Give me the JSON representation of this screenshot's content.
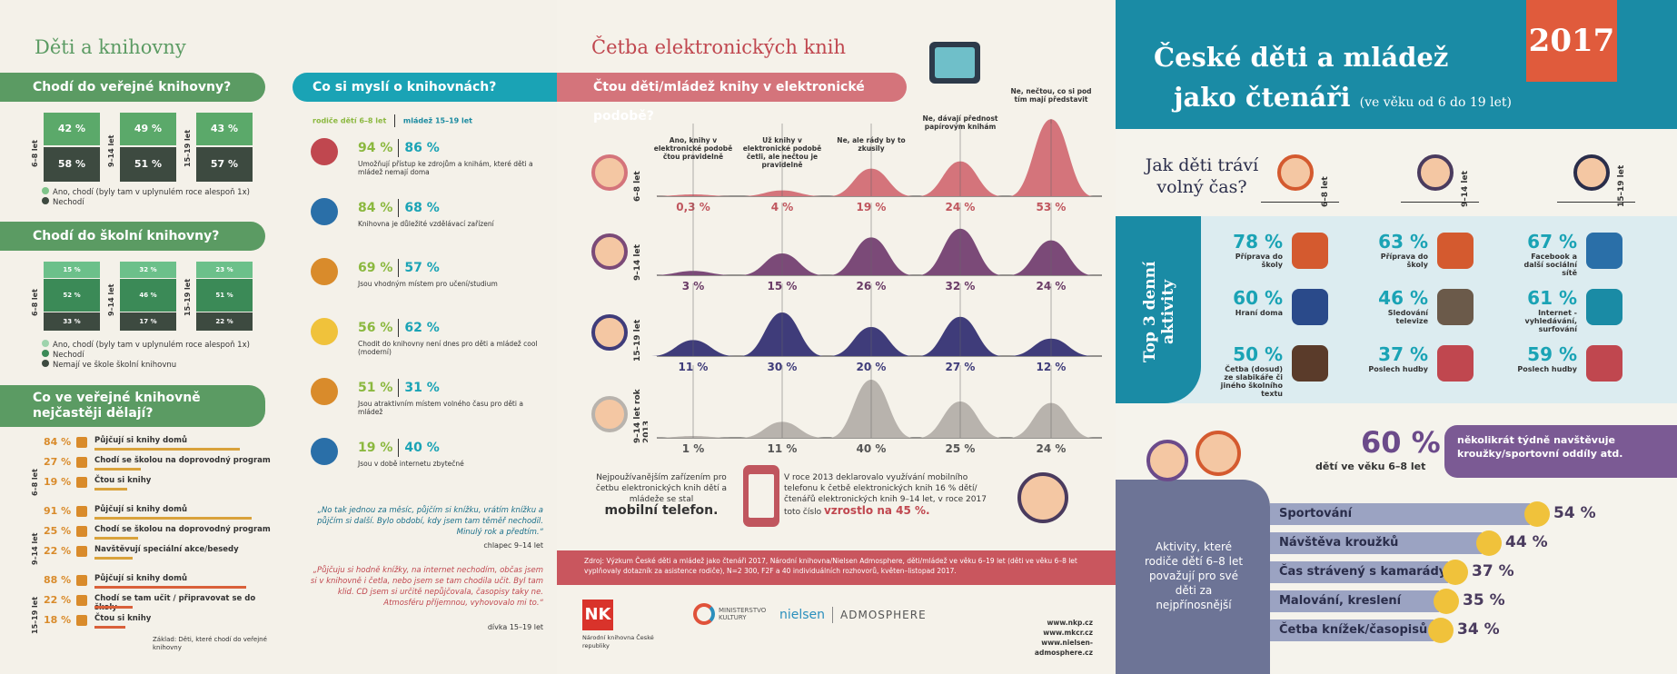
{
  "p1": {
    "title": "Děti a knihovny",
    "q1": "Chodí do veřejné knihovny?",
    "q1_groups": [
      {
        "age": "6–8 let",
        "top": "42 %",
        "bottom": "58 %"
      },
      {
        "age": "9–14 let",
        "top": "49 %",
        "bottom": "51 %"
      },
      {
        "age": "15–19 let",
        "top": "43 %",
        "bottom": "57 %"
      }
    ],
    "q1_legend": [
      "Ano, chodí (byly tam v uplynulém roce alespoň 1x)",
      "Nechodí"
    ],
    "q2": "Chodí do školní knihovny?",
    "q2_groups": [
      {
        "age": "6–8 let",
        "a": "15 %",
        "b": "52 %",
        "c": "33 %"
      },
      {
        "age": "9–14 let",
        "a": "32 %",
        "b": "46 %",
        "c": "17 %"
      },
      {
        "age": "15–19 let",
        "a": "23 %",
        "b": "51 %",
        "c": "22 %"
      }
    ],
    "q2_legend": [
      "Ano, chodí (byly tam v uplynulém roce alespoň 1x)",
      "Nechodí",
      "Nemají ve škole školní knihovnu"
    ],
    "q3": "Co ve veřejné knihovně nejčastěji dělají?",
    "q3_groups": [
      {
        "age": "6–8 let",
        "items": [
          {
            "p": "84 %",
            "t": "Půjčují si knihy domů",
            "v": 84
          },
          {
            "p": "27 %",
            "t": "Chodí se školou na doprovodný program",
            "v": 27
          },
          {
            "p": "19 %",
            "t": "Čtou si knihy",
            "v": 19
          }
        ]
      },
      {
        "age": "9–14 let",
        "items": [
          {
            "p": "91 %",
            "t": "Půjčují si knihy domů",
            "v": 91
          },
          {
            "p": "25 %",
            "t": "Chodí se školou na doprovodný program",
            "v": 25
          },
          {
            "p": "22 %",
            "t": "Navštěvují speciální akce/besedy",
            "v": 22
          }
        ]
      },
      {
        "age": "15–19 let",
        "items": [
          {
            "p": "88 %",
            "t": "Půjčují si knihy domů",
            "v": 88
          },
          {
            "p": "22 %",
            "t": "Chodí se tam učit / připravovat se do školy",
            "v": 22
          },
          {
            "p": "18 %",
            "t": "Čtou si knihy",
            "v": 18
          }
        ]
      }
    ],
    "footnote": "Základ: Děti, které chodí do veřejné knihovny"
  },
  "p2": {
    "q": "Co si myslí o knihovnách?",
    "leg_a": "rodiče dětí 6–8 let",
    "leg_b": "mládež 15–19 let",
    "items": [
      {
        "a": "94 %",
        "b": "86 %",
        "t": "Umožňují přístup ke zdrojům a knihám, které děti a mládež nemají doma"
      },
      {
        "a": "84 %",
        "b": "68 %",
        "t": "Knihovna je důležité vzdělávací zařízení"
      },
      {
        "a": "69 %",
        "b": "57 %",
        "t": "Jsou vhodným místem pro učení/studium"
      },
      {
        "a": "56 %",
        "b": "62 %",
        "t": "Chodit do knihovny není dnes pro děti a mládež cool (moderní)"
      },
      {
        "a": "51 %",
        "b": "31 %",
        "t": "Jsou atraktivním místem volného času pro děti a mládež"
      },
      {
        "a": "19 %",
        "b": "40 %",
        "t": "Jsou v době internetu zbytečné"
      }
    ],
    "quote1": "„No tak jednou za měsíc, půjčím si knížku, vrátím knížku a půjčím si další. Bylo období, kdy jsem tam těměř nechodil. Minulý rok a předtím.“",
    "quote1_by": "chlapec 9–14 let",
    "quote2": "„Půjčuju si hodně knížky, na internet nechodím, občas jsem si v knihovně i četla, nebo jsem se tam chodila učit. Byl tam klid. CD jsem si určitě nepůjčovala, časopisy taky ne. Atmosféru příjemnou, vyhovovalo mi to.“",
    "quote2_by": "dívka 15–19 let"
  },
  "p3": {
    "title": "Četba elektronických knih",
    "q": "Čtou děti/mládež knihy v elektronické podobě?",
    "cols": [
      "Ano, knihy v elektronické podobě čtou pravidelně",
      "Už knihy v elektronické podobě četli, ale nečtou je pravidelně",
      "Ne, ale rády by to zkusily",
      "Ne, dávají přednost papírovým knihám",
      "Ne, nečtou, co si pod tím mají představit"
    ],
    "rows": [
      {
        "label": "6–8 let",
        "vals": [
          "0,3 %",
          "4 %",
          "19 %",
          "24 %",
          "53 %"
        ],
        "n": [
          0.3,
          4,
          19,
          24,
          53
        ],
        "color": "#d4747b",
        "pcolor": "#c0565e"
      },
      {
        "label": "9–14 let",
        "vals": [
          "3 %",
          "15 %",
          "26 %",
          "32 %",
          "24 %"
        ],
        "n": [
          3,
          15,
          26,
          32,
          24
        ],
        "color": "#7b4a78",
        "pcolor": "#6a3b66"
      },
      {
        "label": "15–19 let",
        "vals": [
          "11 %",
          "30 %",
          "20 %",
          "27 %",
          "12 %"
        ],
        "n": [
          11,
          30,
          20,
          27,
          12
        ],
        "color": "#3f3c7a",
        "pcolor": "#3f3c7a"
      },
      {
        "label": "9–14 let rok 2013",
        "vals": [
          "1 %",
          "11 %",
          "40 %",
          "25 %",
          "24 %"
        ],
        "n": [
          1,
          11,
          40,
          25,
          24
        ],
        "color": "#b8b3ad",
        "pcolor": "#555"
      }
    ],
    "device_text": "Nejpoužívanějším zařízením pro četbu elektronických knih dětí a mládeže se stal",
    "device_hl": "mobilní telefon.",
    "y2013": "V roce 2013 deklarovalo využívání mobilního telefonu k četbě elektronických knih 16 % dětí/čtenářů elektronických knih 9–14 let, v roce 2017 toto číslo",
    "y2013_hl": "vzrostlo na 45 %.",
    "source": "Zdroj: Výzkum České děti a mládež jako čtenáři 2017, Národní knihovna/Nielsen Admosphere, děti/mládež ve věku 6–19 let (děti ve věku 6–8 let vyplňovaly dotazník za asistence rodiče), N=2 300, F2F a 40 individuálních rozhovorů, květen–listopad 2017.",
    "logo1": "Národní knihovna České republiky",
    "logo2": "MINISTERSTVO KULTURY",
    "logo3a": "nielsen",
    "logo3b": "ADMOSPHERE",
    "urls": [
      "www.nkp.cz",
      "www.mkcr.cz",
      "www.nielsen-admosphere.cz"
    ]
  },
  "p4": {
    "title1": "České děti a mládež",
    "title2": "jako čtenáři",
    "title_sub": "(ve věku od 6 do 19 let)",
    "year": "2017",
    "q": "Jak děti tráví volný čas?",
    "ages": [
      "6–8 let",
      "9–14 let",
      "15–19 let"
    ],
    "top3": "Top 3 denní aktivity",
    "cols": [
      [
        {
          "p": "78 %",
          "t": "Příprava do školy"
        },
        {
          "p": "60 %",
          "t": "Hraní doma"
        },
        {
          "p": "50 %",
          "t": "Četba (dosud) ze slabikáře či jiného školního textu"
        }
      ],
      [
        {
          "p": "63 %",
          "t": "Příprava do školy"
        },
        {
          "p": "46 %",
          "t": "Sledování televize"
        },
        {
          "p": "37 %",
          "t": "Poslech hudby"
        }
      ],
      [
        {
          "p": "67 %",
          "t": "Facebook a další sociální sítě"
        },
        {
          "p": "61 %",
          "t": "Internet - vyhledávání, surfování"
        },
        {
          "p": "59 %",
          "t": "Poslech hudby"
        }
      ]
    ],
    "big": "60 %",
    "big_sub": "dětí ve věku 6–8 let",
    "big_box": "několikrát týdně navštěvuje kroužky/sportovní oddíly atd.",
    "activity_text": "Aktivity, které rodiče dětí 6–8 let považují pro své děti za nejpřínosnější",
    "bars": [
      {
        "t": "Sportování",
        "p": "54 %",
        "v": 54
      },
      {
        "t": "Návštěva kroužků",
        "p": "44 %",
        "v": 44
      },
      {
        "t": "Čas strávený s kamarády",
        "p": "37 %",
        "v": 37
      },
      {
        "t": "Malování, kreslení",
        "p": "35 %",
        "v": 35
      },
      {
        "t": "Četba knížek/časopisů",
        "p": "34 %",
        "v": 34
      }
    ]
  }
}
